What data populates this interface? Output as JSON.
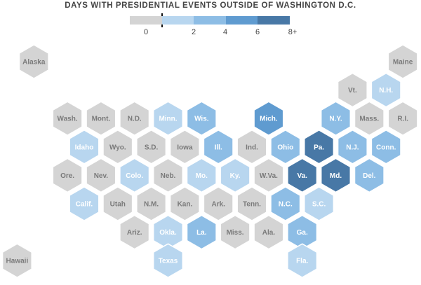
{
  "chart_data": {
    "type": "heatmap",
    "title": "DAYS WITH PRESIDENTIAL EVENTS OUTSIDE OF WASHINGTON D.C.",
    "legend": {
      "bins": [
        {
          "range": [
            0,
            1
          ],
          "color": "#d4d4d4"
        },
        {
          "range": [
            1,
            3
          ],
          "color": "#b8d6ef"
        },
        {
          "range": [
            3,
            5
          ],
          "color": "#8dbde5"
        },
        {
          "range": [
            5,
            7
          ],
          "color": "#5f9bd0"
        },
        {
          "range": [
            7,
            9
          ],
          "color": "#4878a6"
        }
      ],
      "tick_labels": [
        "0",
        "2",
        "4",
        "6",
        "8+"
      ]
    },
    "states": [
      {
        "label": "Alaska",
        "row": 0,
        "col": 0.5,
        "days": 0
      },
      {
        "label": "Maine",
        "row": 0,
        "col": 11.5,
        "days": 0
      },
      {
        "label": "Vt.",
        "row": 1,
        "col": 10,
        "days": 0
      },
      {
        "label": "N.H.",
        "row": 1,
        "col": 11,
        "days": 2
      },
      {
        "label": "Wash.",
        "row": 2,
        "col": 1.5,
        "days": 0
      },
      {
        "label": "Mont.",
        "row": 2,
        "col": 2.5,
        "days": 0
      },
      {
        "label": "N.D.",
        "row": 2,
        "col": 3.5,
        "days": 0
      },
      {
        "label": "Minn.",
        "row": 2,
        "col": 4.5,
        "days": 2
      },
      {
        "label": "Wis.",
        "row": 2,
        "col": 5.5,
        "days": 4
      },
      {
        "label": "Mich.",
        "row": 2,
        "col": 7.5,
        "days": 6
      },
      {
        "label": "N.Y.",
        "row": 2,
        "col": 9.5,
        "days": 4
      },
      {
        "label": "Mass.",
        "row": 2,
        "col": 10.5,
        "days": 0
      },
      {
        "label": "R.I.",
        "row": 2,
        "col": 11.5,
        "days": 0
      },
      {
        "label": "Idaho",
        "row": 3,
        "col": 2,
        "days": 2
      },
      {
        "label": "Wyo.",
        "row": 3,
        "col": 3,
        "days": 0
      },
      {
        "label": "S.D.",
        "row": 3,
        "col": 4,
        "days": 0
      },
      {
        "label": "Iowa",
        "row": 3,
        "col": 5,
        "days": 0
      },
      {
        "label": "Ill.",
        "row": 3,
        "col": 6,
        "days": 4
      },
      {
        "label": "Ind.",
        "row": 3,
        "col": 7,
        "days": 0
      },
      {
        "label": "Ohio",
        "row": 3,
        "col": 8,
        "days": 4
      },
      {
        "label": "Pa.",
        "row": 3,
        "col": 9,
        "days": 8
      },
      {
        "label": "N.J.",
        "row": 3,
        "col": 10,
        "days": 4
      },
      {
        "label": "Conn.",
        "row": 3,
        "col": 11,
        "days": 4
      },
      {
        "label": "Ore.",
        "row": 4,
        "col": 1.5,
        "days": 0
      },
      {
        "label": "Nev.",
        "row": 4,
        "col": 2.5,
        "days": 0
      },
      {
        "label": "Colo.",
        "row": 4,
        "col": 3.5,
        "days": 2
      },
      {
        "label": "Neb.",
        "row": 4,
        "col": 4.5,
        "days": 0
      },
      {
        "label": "Mo.",
        "row": 4,
        "col": 5.5,
        "days": 2
      },
      {
        "label": "Ky.",
        "row": 4,
        "col": 6.5,
        "days": 2
      },
      {
        "label": "W.Va.",
        "row": 4,
        "col": 7.5,
        "days": 0
      },
      {
        "label": "Va.",
        "row": 4,
        "col": 8.5,
        "days": 8
      },
      {
        "label": "Md.",
        "row": 4,
        "col": 9.5,
        "days": 8
      },
      {
        "label": "Del.",
        "row": 4,
        "col": 10.5,
        "days": 4
      },
      {
        "label": "Calif.",
        "row": 5,
        "col": 2,
        "days": 2
      },
      {
        "label": "Utah",
        "row": 5,
        "col": 3,
        "days": 0
      },
      {
        "label": "N.M.",
        "row": 5,
        "col": 4,
        "days": 0
      },
      {
        "label": "Kan.",
        "row": 5,
        "col": 5,
        "days": 0
      },
      {
        "label": "Ark.",
        "row": 5,
        "col": 6,
        "days": 0
      },
      {
        "label": "Tenn.",
        "row": 5,
        "col": 7,
        "days": 0
      },
      {
        "label": "N.C.",
        "row": 5,
        "col": 8,
        "days": 4
      },
      {
        "label": "S.C.",
        "row": 5,
        "col": 9,
        "days": 2
      },
      {
        "label": "Ariz.",
        "row": 6,
        "col": 3.5,
        "days": 0
      },
      {
        "label": "Okla.",
        "row": 6,
        "col": 4.5,
        "days": 2
      },
      {
        "label": "La.",
        "row": 6,
        "col": 5.5,
        "days": 4
      },
      {
        "label": "Miss.",
        "row": 6,
        "col": 6.5,
        "days": 0
      },
      {
        "label": "Ala.",
        "row": 6,
        "col": 7.5,
        "days": 0
      },
      {
        "label": "Ga.",
        "row": 6,
        "col": 8.5,
        "days": 4
      },
      {
        "label": "Texas",
        "row": 7,
        "col": 4.5,
        "days": 2
      },
      {
        "label": "Fla.",
        "row": 7,
        "col": 8.5,
        "days": 2
      },
      {
        "label": "Hawaii",
        "row": 7,
        "col": 0,
        "days": 0
      }
    ]
  }
}
